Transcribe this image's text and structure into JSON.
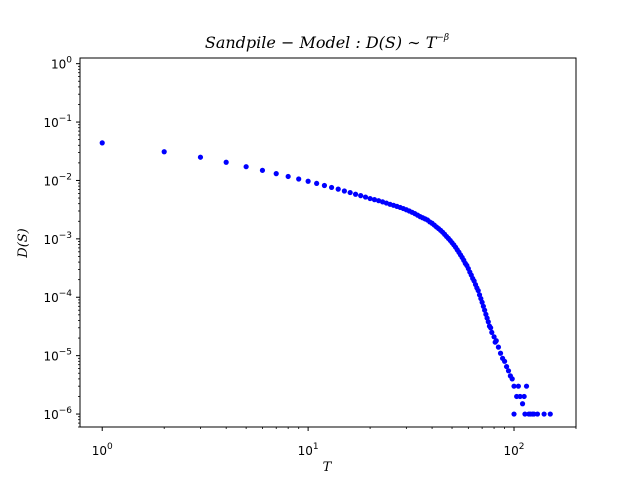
{
  "chart_data": {
    "type": "scatter",
    "title_prefix": "Sandpile − Model : D(S) ∼ T",
    "title_superscript": "−β",
    "xlabel": "T",
    "ylabel": "D(S)",
    "xscale": "log",
    "yscale": "log",
    "xlim": [
      0.78,
      200
    ],
    "ylim": [
      6e-07,
      1.25
    ],
    "grid": false,
    "marker_color": "#0000ff",
    "x_ticks": [
      {
        "base": "10",
        "exp": "0",
        "value": 1
      },
      {
        "base": "10",
        "exp": "1",
        "value": 10
      },
      {
        "base": "10",
        "exp": "2",
        "value": 100
      }
    ],
    "y_ticks": [
      {
        "base": "10",
        "exp": "0",
        "value": 1
      },
      {
        "base": "10",
        "exp": "−1",
        "value": 0.1
      },
      {
        "base": "10",
        "exp": "−2",
        "value": 0.01
      },
      {
        "base": "10",
        "exp": "−3",
        "value": 0.001
      },
      {
        "base": "10",
        "exp": "−4",
        "value": 0.0001
      },
      {
        "base": "10",
        "exp": "−5",
        "value": 1e-05
      },
      {
        "base": "10",
        "exp": "−6",
        "value": 1e-06
      }
    ],
    "points": [
      [
        1,
        0.044
      ],
      [
        2,
        0.031
      ],
      [
        3,
        0.025
      ],
      [
        4,
        0.0205
      ],
      [
        5,
        0.0172
      ],
      [
        6,
        0.0149
      ],
      [
        7,
        0.0131
      ],
      [
        8,
        0.0117
      ],
      [
        9,
        0.0106
      ],
      [
        10,
        0.0097
      ],
      [
        11,
        0.0089
      ],
      [
        12,
        0.0082
      ],
      [
        13,
        0.0076
      ],
      [
        14,
        0.0071
      ],
      [
        15,
        0.0066
      ],
      [
        16,
        0.0062
      ],
      [
        17,
        0.0058
      ],
      [
        18,
        0.0055
      ],
      [
        19,
        0.0052
      ],
      [
        20,
        0.0049
      ],
      [
        21,
        0.0047
      ],
      [
        22,
        0.0045
      ],
      [
        23,
        0.0043
      ],
      [
        24,
        0.0041
      ],
      [
        25,
        0.0039
      ],
      [
        26,
        0.00375
      ],
      [
        27,
        0.0036
      ],
      [
        28,
        0.00345
      ],
      [
        29,
        0.0033
      ],
      [
        30,
        0.00315
      ],
      [
        31,
        0.003
      ],
      [
        32,
        0.00285
      ],
      [
        33,
        0.0027
      ],
      [
        34,
        0.00255
      ],
      [
        35,
        0.0024
      ],
      [
        36,
        0.0023
      ],
      [
        37,
        0.0022
      ],
      [
        38,
        0.0021
      ],
      [
        39,
        0.00195
      ],
      [
        40,
        0.00185
      ],
      [
        41,
        0.00172
      ],
      [
        42,
        0.0016
      ],
      [
        43,
        0.0015
      ],
      [
        44,
        0.0014
      ],
      [
        45,
        0.0013
      ],
      [
        46,
        0.0012
      ],
      [
        47,
        0.0011
      ],
      [
        48,
        0.00102
      ],
      [
        49,
        0.00094
      ],
      [
        50,
        0.00086
      ],
      [
        51,
        0.00079
      ],
      [
        52,
        0.00072
      ],
      [
        53,
        0.00065
      ],
      [
        54,
        0.00059
      ],
      [
        55,
        0.00053
      ],
      [
        56,
        0.00048
      ],
      [
        57,
        0.00043
      ],
      [
        58,
        0.00038
      ],
      [
        59,
        0.00035
      ],
      [
        60,
        0.00031
      ],
      [
        61,
        0.00027
      ],
      [
        62,
        0.00024
      ],
      [
        63,
        0.00021
      ],
      [
        64,
        0.00019
      ],
      [
        65,
        0.000165
      ],
      [
        66,
        0.000145
      ],
      [
        67,
        0.00013
      ],
      [
        68,
        0.00011
      ],
      [
        69,
        9.5e-05
      ],
      [
        70,
        8.2e-05
      ],
      [
        71,
        7e-05
      ],
      [
        72,
        6e-05
      ],
      [
        73,
        5.1e-05
      ],
      [
        74,
        4.4e-05
      ],
      [
        75,
        3.8e-05
      ],
      [
        76,
        3.2e-05
      ],
      [
        77,
        3e-05
      ],
      [
        78,
        2.5e-05
      ],
      [
        80,
        2.1e-05
      ],
      [
        81,
        1.7e-05
      ],
      [
        82,
        1.8e-05
      ],
      [
        84,
        1.4e-05
      ],
      [
        86,
        1.1e-05
      ],
      [
        88,
        9e-06
      ],
      [
        90,
        8e-06
      ],
      [
        92,
        6.5e-06
      ],
      [
        94,
        5.5e-06
      ],
      [
        96,
        4.5e-06
      ],
      [
        98,
        4e-06
      ],
      [
        100,
        3e-06
      ],
      [
        100,
        1e-06
      ],
      [
        103,
        2e-06
      ],
      [
        105,
        3e-06
      ],
      [
        107,
        2e-06
      ],
      [
        110,
        1.5e-06
      ],
      [
        112,
        2e-06
      ],
      [
        113,
        1e-06
      ],
      [
        115,
        3e-06
      ],
      [
        118,
        1e-06
      ],
      [
        120,
        1e-06
      ],
      [
        123,
        1e-06
      ],
      [
        125,
        1e-06
      ],
      [
        130,
        1e-06
      ],
      [
        140,
        1e-06
      ],
      [
        150,
        1e-06
      ]
    ]
  }
}
